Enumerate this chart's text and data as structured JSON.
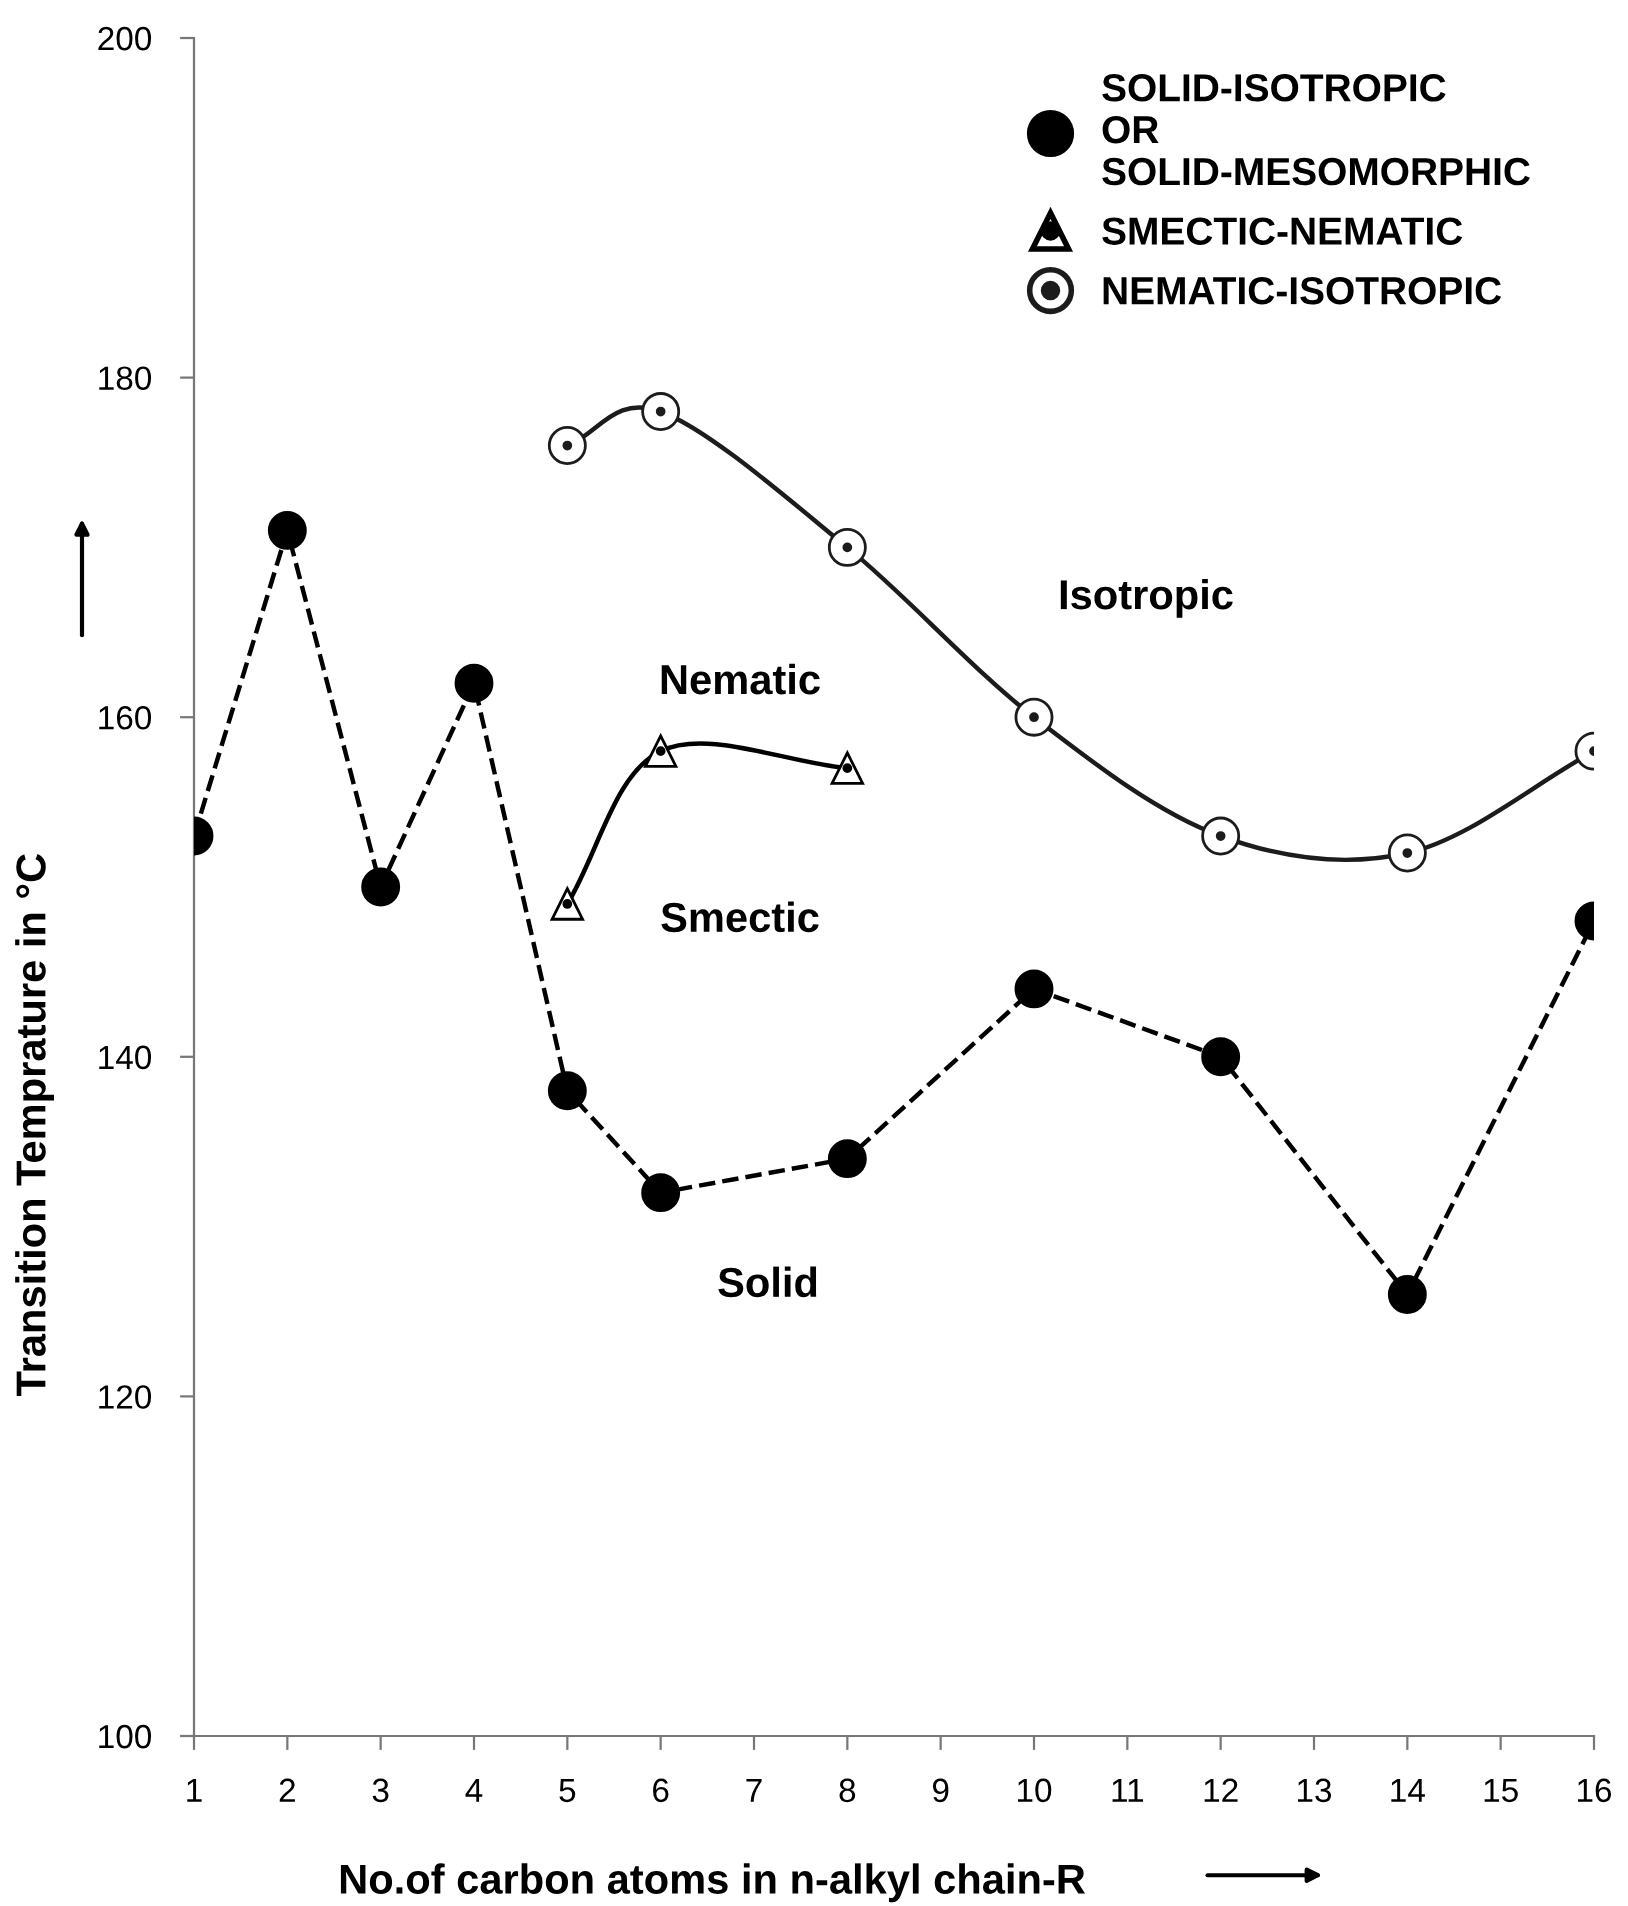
{
  "chart_data": {
    "type": "line",
    "xlabel": "No.of carbon atoms in n-alkyl chain-R",
    "ylabel": "Transition Temprature in °C",
    "xlim": [
      1,
      16
    ],
    "xticks": [
      1,
      2,
      3,
      4,
      5,
      6,
      7,
      8,
      9,
      10,
      11,
      12,
      13,
      14,
      15,
      16
    ],
    "ylim": [
      100,
      200
    ],
    "yticks": [
      100,
      120,
      140,
      160,
      180,
      200
    ],
    "grid": false,
    "legend": "top right",
    "series": [
      {
        "name": "SOLID-ISOTROPIC\nOR\nSOLID-MESOMORPHIC",
        "color": "#000000",
        "marker": "circle",
        "line_style": "dashed",
        "x": [
          1,
          2,
          3,
          4,
          5,
          6,
          8,
          10,
          12,
          14,
          16
        ],
        "values": [
          153,
          171,
          150,
          162,
          138,
          132,
          134,
          144,
          140,
          126,
          148
        ]
      },
      {
        "name": "SMECTIC-NEMATIC",
        "color": "#000000",
        "marker": "triangle",
        "line_style": "solid",
        "x": [
          5,
          6,
          8
        ],
        "values": [
          149,
          158,
          157
        ]
      },
      {
        "name": "NEMATIC-ISOTROPIC",
        "color": "#1c1c1c",
        "marker": "circle",
        "line_style": "solid",
        "x": [
          5,
          6,
          8,
          10,
          12,
          14,
          16
        ],
        "values": [
          176,
          178,
          170,
          160,
          153,
          152,
          158
        ]
      }
    ],
    "annotations": [
      "Isotropic",
      "Nematic",
      "Smectic",
      "Solid"
    ]
  }
}
